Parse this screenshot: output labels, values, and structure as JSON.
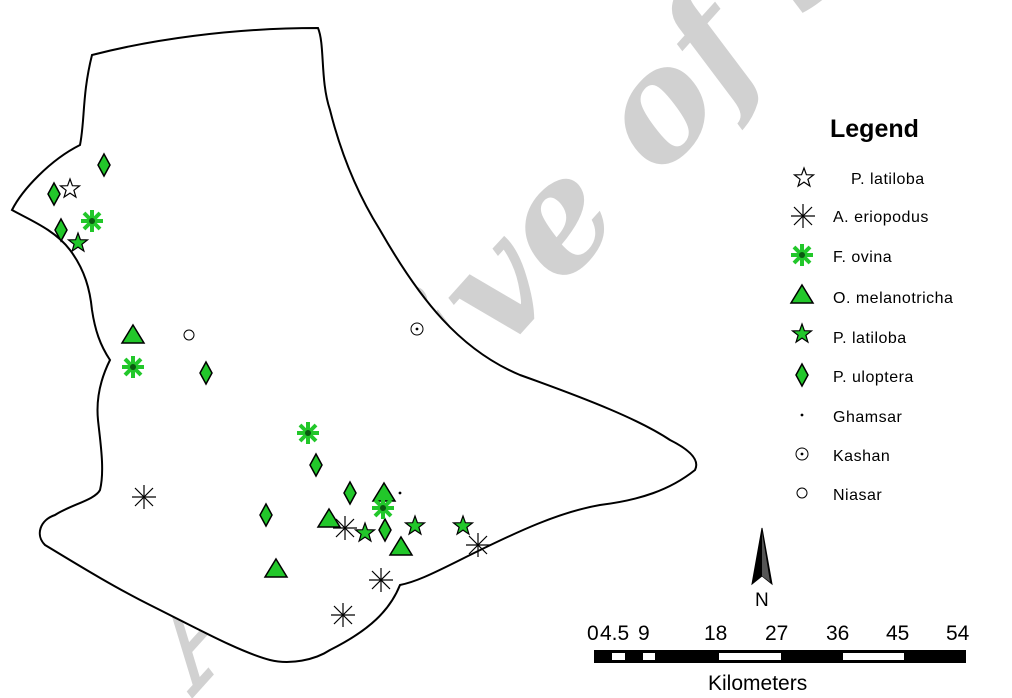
{
  "legend": {
    "title": "Legend",
    "items": [
      {
        "label": "P. latiloba",
        "symbol": "star-outline"
      },
      {
        "label": "A. eriopodus",
        "symbol": "asterisk"
      },
      {
        "label": "F. ovina",
        "symbol": "green-asterisk"
      },
      {
        "label": "O. melanotricha",
        "symbol": "green-triangle"
      },
      {
        "label": "P. latiloba",
        "symbol": "green-star"
      },
      {
        "label": "P. uloptera",
        "symbol": "green-diamond"
      },
      {
        "label": "Ghamsar",
        "symbol": "small-dot"
      },
      {
        "label": "Kashan",
        "symbol": "dot-circle"
      },
      {
        "label": "Niasar",
        "symbol": "circle"
      }
    ]
  },
  "scale_bar": {
    "ticks": [
      "0",
      "4.5",
      "9",
      "18",
      "27",
      "36",
      "45",
      "54"
    ],
    "unit": "Kilometers"
  },
  "north_arrow": {
    "label": "N"
  },
  "watermark": {
    "text": "Archive of SID"
  },
  "colors": {
    "green": "#22c72a",
    "green_dark": "#0a5a10",
    "outline": "#000000",
    "watermark": "#c9c9c9"
  }
}
